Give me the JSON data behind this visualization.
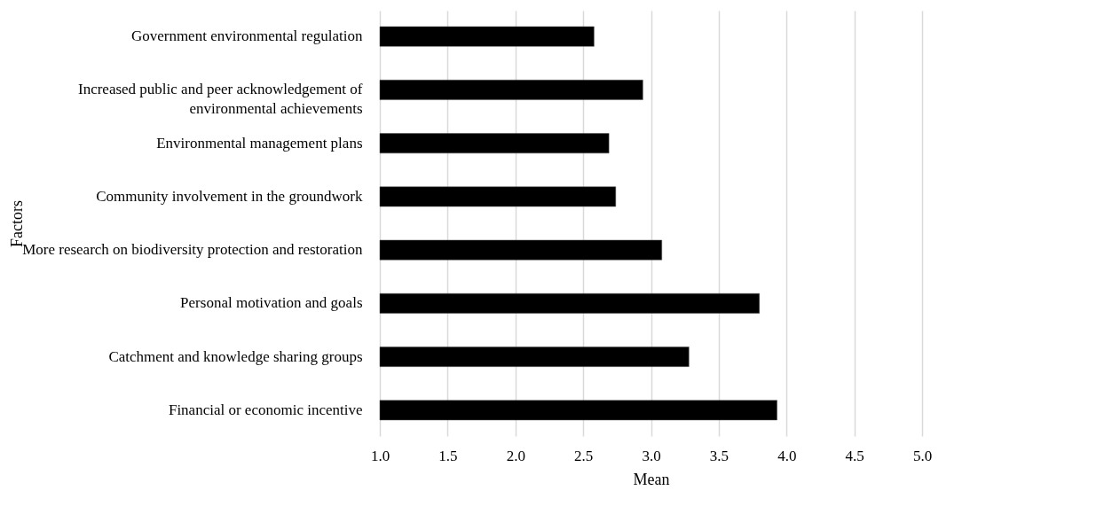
{
  "chart_data": {
    "type": "bar",
    "orientation": "horizontal",
    "xlabel": "Mean",
    "ylabel": "Factors",
    "categories": [
      "Government environmental regulation",
      "Increased public and peer acknowledgement of environmental achievements",
      "Environmental management plans",
      "Community involvement in the groundwork",
      "More research on biodiversity protection and restoration",
      "Personal motivation and goals",
      "Catchment and knowledge sharing groups",
      "Financial or economic incentive"
    ],
    "values": [
      2.58,
      2.94,
      2.69,
      2.74,
      3.08,
      3.8,
      3.28,
      3.93
    ],
    "color": "#000000",
    "xlim": [
      1,
      5
    ],
    "xticks": [
      {
        "value": 1,
        "label": "1.0"
      },
      {
        "value": 1.5,
        "label": "1.5"
      },
      {
        "value": 2,
        "label": "2.0"
      },
      {
        "value": 2.5,
        "label": "2.5"
      },
      {
        "value": 3,
        "label": "3.0"
      },
      {
        "value": 3.5,
        "label": "3.5"
      },
      {
        "value": 4,
        "label": "4.0"
      },
      {
        "value": 4.5,
        "label": "4.5"
      },
      {
        "value": 5,
        "label": "5.0"
      }
    ],
    "grid": "x"
  }
}
